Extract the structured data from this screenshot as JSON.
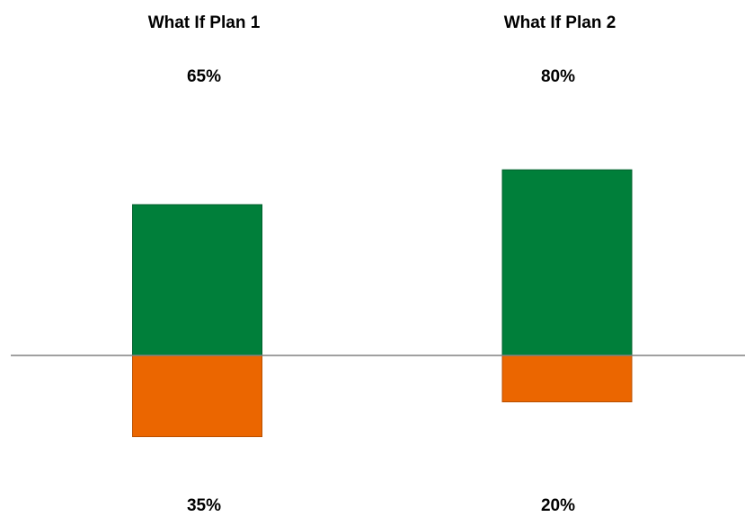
{
  "chart_data": {
    "type": "bar",
    "categories": [
      "What If Plan 1",
      "What If Plan 2"
    ],
    "series": [
      {
        "values": [
          65,
          80
        ],
        "labels": [
          "65%",
          "80%"
        ],
        "color": "#007f3a",
        "direction": "up"
      },
      {
        "values": [
          35,
          20
        ],
        "labels": [
          "35%",
          "20%"
        ],
        "color": "#eb6600",
        "direction": "down"
      }
    ],
    "unit": "%",
    "title": "",
    "xlabel": "",
    "ylabel": "",
    "grid": false,
    "legend": "none",
    "baseline_color": "#808080"
  }
}
